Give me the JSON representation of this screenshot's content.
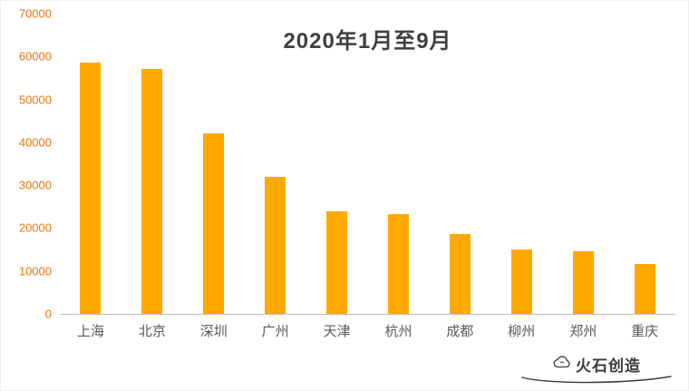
{
  "title": "2020年1月至9月",
  "colors": {
    "bar": "#FFA800",
    "ytick": "#E8740C",
    "title": "#3F3F3F",
    "xlabel": "#595959",
    "axis_line": "#BFBFBF",
    "watermark": "#3A3A3A"
  },
  "chart_data": {
    "type": "bar",
    "title": "2020年1月至9月",
    "categories": [
      "上海",
      "北京",
      "深圳",
      "广州",
      "天津",
      "杭州",
      "成都",
      "柳州",
      "郑州",
      "重庆"
    ],
    "values": [
      58500,
      57000,
      42000,
      32000,
      24000,
      23300,
      18700,
      15000,
      14700,
      11700
    ],
    "xlabel": "",
    "ylabel": "",
    "ylim": [
      0,
      70000
    ],
    "yticks": [
      0,
      10000,
      20000,
      30000,
      40000,
      50000,
      60000,
      70000
    ],
    "grid": false,
    "legend": "none"
  },
  "watermark": {
    "text": "火石创造",
    "logo_icon": "cloud-logo-icon"
  }
}
